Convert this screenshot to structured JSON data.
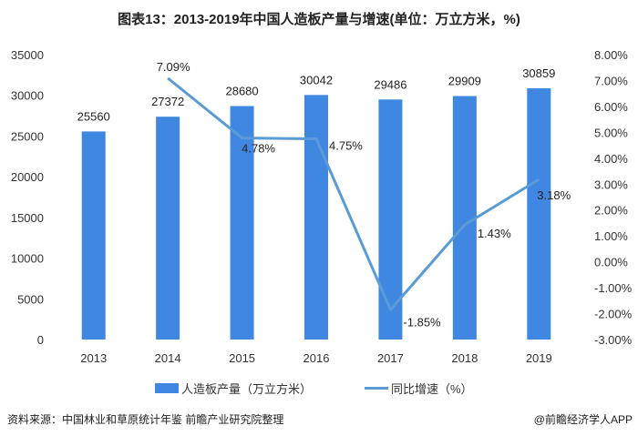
{
  "chart_data": {
    "type": "bar+line",
    "title": "图表13：2013-2019年中国人造板产量与增速(单位：万立方米，%)",
    "categories": [
      "2013",
      "2014",
      "2015",
      "2016",
      "2017",
      "2018",
      "2019"
    ],
    "series": [
      {
        "name": "人造板产量（万立方米）",
        "type": "bar",
        "axis": "left",
        "color": "#3f87e0",
        "values": [
          25560,
          27372,
          28680,
          30042,
          29486,
          29909,
          30859
        ],
        "labels": [
          "25560",
          "27372",
          "28680",
          "30042",
          "29486",
          "29909",
          "30859"
        ]
      },
      {
        "name": "同比增速（%）",
        "type": "line",
        "axis": "right",
        "color": "#5b9bd5",
        "values": [
          null,
          7.09,
          4.78,
          4.75,
          -1.85,
          1.43,
          3.18
        ],
        "labels": [
          "",
          "7.09%",
          "4.78%",
          "4.75%",
          "-1.85%",
          "1.43%",
          "3.18%"
        ]
      }
    ],
    "left_axis": {
      "ylim": [
        0,
        35000
      ],
      "ticks": [
        "0",
        "5000",
        "10000",
        "15000",
        "20000",
        "25000",
        "30000",
        "35000"
      ]
    },
    "right_axis": {
      "ylim": [
        -3,
        8
      ],
      "ticks": [
        "-3.00%",
        "-2.00%",
        "-1.00%",
        "0.00%",
        "1.00%",
        "2.00%",
        "3.00%",
        "4.00%",
        "5.00%",
        "6.00%",
        "7.00%",
        "8.00%"
      ]
    },
    "legend_position": "bottom",
    "grid": false
  },
  "source": "资料来源：中国林业和草原统计年鉴 前瞻产业研究院整理",
  "credit": "@前瞻经济学人APP"
}
